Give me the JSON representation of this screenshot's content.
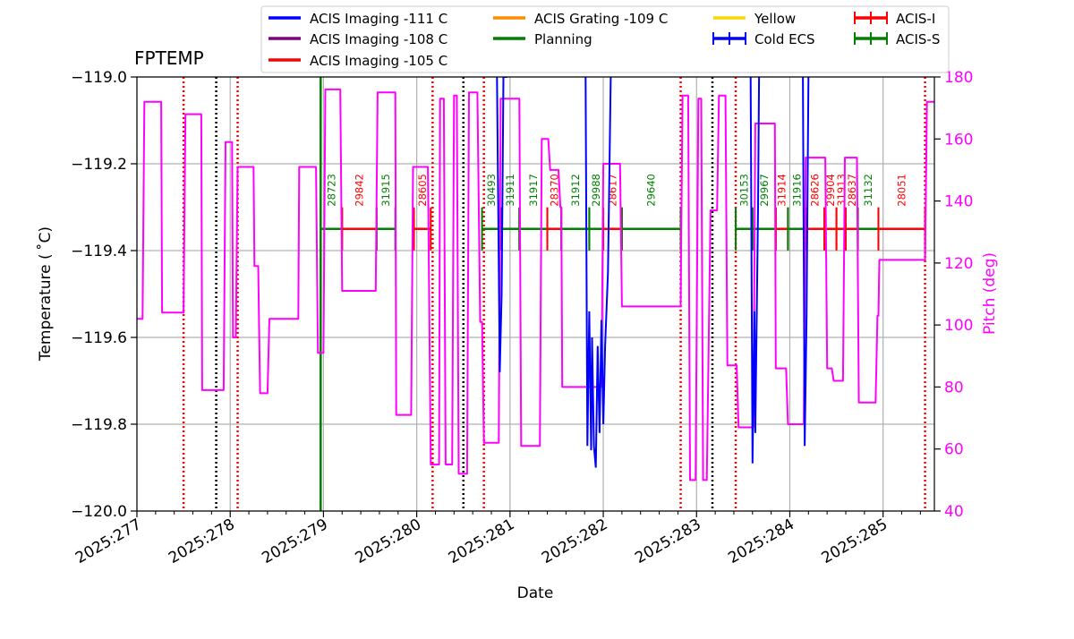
{
  "chart_data": {
    "type": "line",
    "title": "FPTEMP",
    "xlabel": "Date",
    "ylabel": "Temperature ($^\\circ$C)",
    "ylabel_display": "Temperature ( ˚C)",
    "y2label": "Pitch (deg)",
    "xlim": [
      277.0,
      285.55
    ],
    "ylim": [
      -120.0,
      -119.0
    ],
    "y2lim": [
      40,
      180
    ],
    "x_ticks": [
      277,
      278,
      279,
      280,
      281,
      282,
      283,
      284,
      285
    ],
    "x_tick_labels": [
      "2025:277",
      "2025:278",
      "2025:279",
      "2025:280",
      "2025:281",
      "2025:282",
      "2025:283",
      "2025:284",
      "2025:285"
    ],
    "y_ticks": [
      -120.0,
      -119.8,
      -119.6,
      -119.4,
      -119.2,
      -119.0
    ],
    "y_tick_labels": [
      "−120.0",
      "−119.8",
      "−119.6",
      "−119.4",
      "−119.2",
      "−119.0"
    ],
    "y2_ticks": [
      40,
      60,
      80,
      100,
      120,
      140,
      160,
      180
    ],
    "y2_tick_labels": [
      "40",
      "60",
      "80",
      "100",
      "120",
      "140",
      "160",
      "180"
    ],
    "grid": true,
    "colors": {
      "acis_i": "#ff0000",
      "acis_s": "#008000",
      "pitch": "#ff00ff",
      "fptemp": "#0000ff",
      "black": "#000000",
      "grid": "#b0b0b0"
    },
    "legend": {
      "placement": "top",
      "entries": [
        {
          "label": "ACIS Imaging -111 C",
          "color": "#0000ff",
          "style": "line"
        },
        {
          "label": "ACIS Imaging -108 C",
          "color": "#800080",
          "style": "line"
        },
        {
          "label": "ACIS Imaging -105 C",
          "color": "#ff0000",
          "style": "line"
        },
        {
          "label": "ACIS Grating -109 C",
          "color": "#ff8c00",
          "style": "line"
        },
        {
          "label": "Planning",
          "color": "#008000",
          "style": "line"
        },
        {
          "label": "Yellow",
          "color": "#ffd700",
          "style": "line"
        },
        {
          "label": "Cold ECS",
          "color": "#0000ff",
          "style": "errorbar"
        },
        {
          "label": "ACIS-I",
          "color": "#ff0000",
          "style": "errorbar"
        },
        {
          "label": "ACIS-S",
          "color": "#008000",
          "style": "errorbar"
        }
      ]
    },
    "planning_limit": {
      "x": 278.97,
      "color": "#008000"
    },
    "vertical_lines": {
      "red_dotted": [
        277.5,
        278.08,
        280.17,
        280.72,
        282.83,
        283.42,
        285.45
      ],
      "black_dotted": [
        277.85,
        280.5,
        283.17
      ]
    },
    "observations": [
      {
        "obsid": "28723",
        "instrument": "ACIS-S",
        "start": 278.97,
        "end": 279.2
      },
      {
        "obsid": "29842",
        "instrument": "ACIS-I",
        "start": 279.2,
        "end": 279.57
      },
      {
        "obsid": "31915",
        "instrument": "ACIS-S",
        "start": 279.57,
        "end": 279.77
      },
      {
        "obsid": "28605",
        "instrument": "ACIS-I",
        "start": 279.97,
        "end": 280.15
      },
      {
        "obsid": "30493",
        "instrument": "ACIS-S",
        "start": 280.7,
        "end": 280.9
      },
      {
        "obsid": "31911",
        "instrument": "ACIS-S",
        "start": 280.9,
        "end": 281.1
      },
      {
        "obsid": "31917",
        "instrument": "ACIS-S",
        "start": 281.1,
        "end": 281.4
      },
      {
        "obsid": "28370",
        "instrument": "ACIS-I",
        "start": 281.4,
        "end": 281.55
      },
      {
        "obsid": "31912",
        "instrument": "ACIS-S",
        "start": 281.55,
        "end": 281.85
      },
      {
        "obsid": "29988",
        "instrument": "ACIS-S",
        "start": 281.85,
        "end": 282.0
      },
      {
        "obsid": "28617",
        "instrument": "ACIS-I",
        "start": 282.0,
        "end": 282.2
      },
      {
        "obsid": "29640",
        "instrument": "ACIS-S",
        "start": 282.2,
        "end": 282.83
      },
      {
        "obsid": "30153",
        "instrument": "ACIS-S",
        "start": 283.42,
        "end": 283.6
      },
      {
        "obsid": "29967",
        "instrument": "ACIS-S",
        "start": 283.6,
        "end": 283.85
      },
      {
        "obsid": "31914",
        "instrument": "ACIS-I",
        "start": 283.85,
        "end": 283.98
      },
      {
        "obsid": "31916",
        "instrument": "ACIS-S",
        "start": 283.98,
        "end": 284.17
      },
      {
        "obsid": "28626",
        "instrument": "ACIS-I",
        "start": 284.17,
        "end": 284.37
      },
      {
        "obsid": "29904",
        "instrument": "ACIS-I",
        "start": 284.37,
        "end": 284.5
      },
      {
        "obsid": "31913",
        "instrument": "ACIS-I",
        "start": 284.5,
        "end": 284.6
      },
      {
        "obsid": "28637",
        "instrument": "ACIS-I",
        "start": 284.6,
        "end": 284.73
      },
      {
        "obsid": "31132",
        "instrument": "ACIS-S",
        "start": 284.73,
        "end": 284.95
      },
      {
        "obsid": "28051",
        "instrument": "ACIS-I",
        "start": 284.95,
        "end": 285.45
      }
    ],
    "pitch_series": {
      "name": "Pitch",
      "axis": "right",
      "x": [
        277.0,
        277.06,
        277.08,
        277.26,
        277.27,
        277.5,
        277.52,
        277.69,
        277.7,
        277.93,
        277.95,
        278.02,
        278.03,
        278.06,
        278.08,
        278.25,
        278.26,
        278.3,
        278.32,
        278.4,
        278.42,
        278.73,
        278.74,
        278.92,
        278.94,
        279.0,
        279.02,
        279.18,
        279.2,
        279.56,
        279.58,
        279.77,
        279.78,
        279.94,
        279.96,
        280.12,
        280.15,
        280.24,
        280.25,
        280.29,
        280.31,
        280.38,
        280.4,
        280.43,
        280.45,
        280.54,
        280.56,
        280.65,
        280.68,
        280.7,
        280.72,
        280.88,
        280.9,
        281.1,
        281.12,
        281.32,
        281.34,
        281.41,
        281.43,
        281.52,
        281.54,
        281.55,
        281.56,
        281.98,
        282.0,
        282.04,
        282.06,
        282.18,
        282.2,
        282.8,
        282.82,
        282.83,
        282.85,
        282.91,
        282.93,
        282.99,
        283.02,
        283.05,
        283.07,
        283.11,
        283.15,
        283.22,
        283.24,
        283.31,
        283.33,
        283.43,
        283.45,
        283.61,
        283.63,
        283.84,
        283.85,
        283.96,
        283.98,
        284.15,
        284.17,
        284.38,
        284.4,
        284.45,
        284.47,
        284.57,
        284.59,
        284.72,
        284.74,
        284.92,
        284.94,
        284.95,
        284.96,
        285.45,
        285.47,
        285.55
      ],
      "y": [
        102,
        102,
        172,
        172,
        104,
        104,
        168,
        168,
        79,
        79,
        159,
        159,
        96,
        96,
        151,
        151,
        119,
        119,
        78,
        78,
        102,
        102,
        151,
        151,
        91,
        91,
        176,
        176,
        111,
        111,
        175,
        175,
        71,
        71,
        151,
        151,
        55,
        55,
        173,
        173,
        55,
        55,
        174,
        174,
        52,
        52,
        175,
        175,
        101,
        101,
        62,
        62,
        173,
        173,
        61,
        61,
        160,
        160,
        150,
        150,
        138,
        138,
        80,
        80,
        152,
        152,
        152,
        152,
        106,
        106,
        106,
        106,
        174,
        174,
        50,
        50,
        173,
        173,
        50,
        50,
        137,
        137,
        174,
        174,
        87,
        87,
        67,
        67,
        165,
        165,
        86,
        86,
        68,
        68,
        154,
        154,
        86,
        86,
        82,
        82,
        154,
        154,
        75,
        75,
        103,
        103,
        121,
        121,
        172,
        172
      ]
    },
    "fptemp_series": {
      "name": "FPTEMP",
      "axis": "left",
      "x": [
        280.86,
        280.89,
        280.91,
        280.93,
        280.95,
        280.97,
        281.81,
        281.83,
        281.85,
        281.87,
        281.88,
        281.9,
        281.92,
        281.94,
        281.96,
        281.98,
        282.0,
        282.02,
        282.05,
        282.08,
        283.58,
        283.6,
        283.62,
        283.63,
        283.66,
        283.67,
        284.14,
        284.16,
        284.18,
        284.2
      ],
      "y": [
        -119.0,
        -119.68,
        -119.5,
        -119.0,
        -119.0,
        -119.0,
        -119.0,
        -119.85,
        -119.54,
        -119.86,
        -119.6,
        -119.85,
        -119.9,
        -119.62,
        -119.82,
        -119.56,
        -119.8,
        -119.62,
        -119.45,
        -119.0,
        -119.0,
        -119.89,
        -119.54,
        -119.82,
        -119.3,
        -119.0,
        -119.0,
        -119.85,
        -119.55,
        -119.0
      ]
    }
  }
}
